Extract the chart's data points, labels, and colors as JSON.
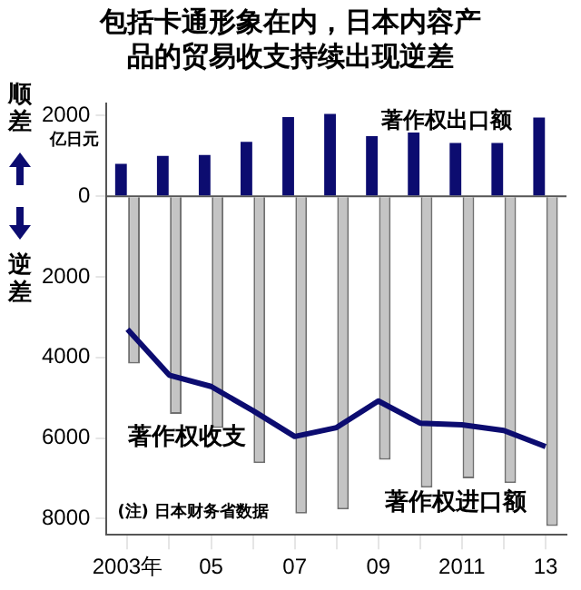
{
  "chart_data": {
    "type": "bar",
    "title": "包括卡通形象在内，日本内容产品的贸易收支持续出现逆差",
    "ylabel": "亿日元",
    "annotations": [
      "顺差",
      "逆差",
      "(注) 日本财务省数据"
    ],
    "categories": [
      "2003年",
      null,
      "05",
      null,
      "07",
      null,
      "09",
      null,
      "2011",
      null,
      "13"
    ],
    "series": [
      {
        "name": "著作权出口额",
        "color": "#0c0c70",
        "values": [
          800,
          1000,
          1020,
          1350,
          1960,
          2040,
          1490,
          1590,
          1320,
          1320,
          1950
        ]
      },
      {
        "name": "著作权进口额",
        "color": "#c4c4c4",
        "values": [
          -4150,
          -5400,
          -5750,
          -6620,
          -7870,
          -7770,
          -6540,
          -7230,
          -7000,
          -7120,
          -8180
        ]
      },
      {
        "name": "著作权收支",
        "type": "line",
        "color": "#0c0c70",
        "marker": "none",
        "values": [
          -3300,
          -4440,
          -4720,
          -5320,
          -5960,
          -5740,
          -5080,
          -5630,
          -5670,
          -5810,
          -6210
        ]
      }
    ],
    "ylim": [
      -8400,
      2300
    ],
    "yticks": [
      {
        "value": -8000,
        "label": "8000"
      },
      {
        "value": -6000,
        "label": "6000"
      },
      {
        "value": -4000,
        "label": "4000"
      },
      {
        "value": -2000,
        "label": "2000"
      },
      0,
      2000
    ],
    "legend": false
  }
}
